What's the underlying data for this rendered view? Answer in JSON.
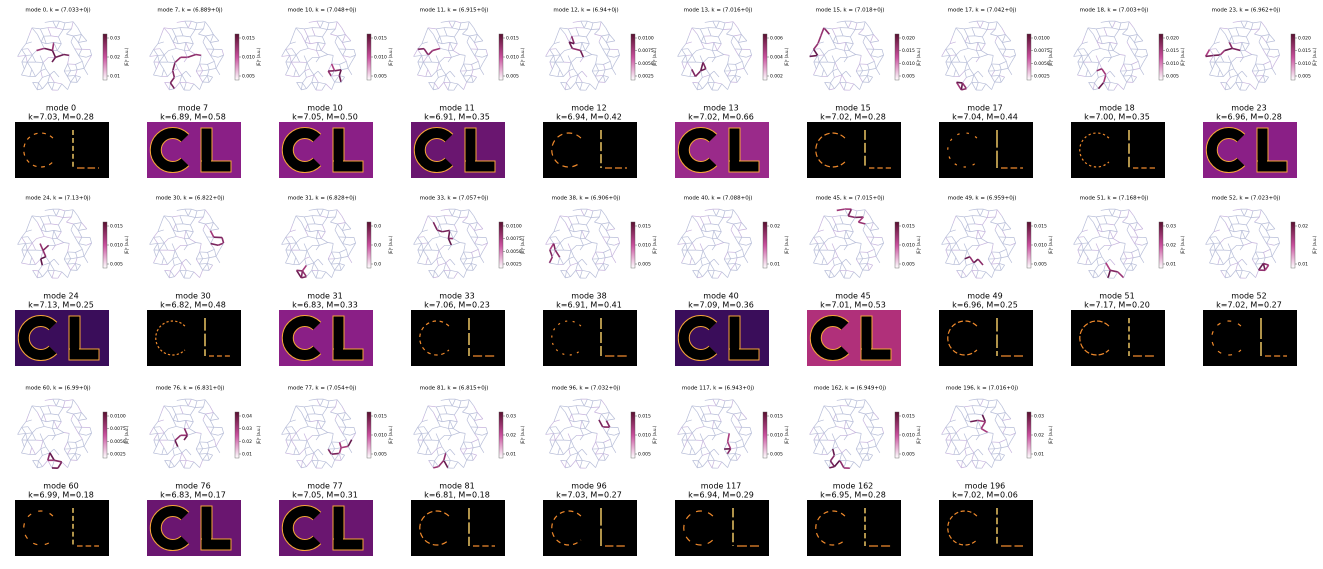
{
  "colorbar_label": "|E|² (a.u.)",
  "panels": [
    {
      "graph_title": "mode 0, k = (7.033+0j)",
      "colorbar_ticks": [
        "0.03",
        "0.02",
        "0.01"
      ],
      "heatmap_title": "mode 0",
      "heatmap_subtitle": "k=7.03, M=0.28",
      "heatmap_background": "#000000"
    },
    {
      "graph_title": "mode 7, k = (6.889+0j)",
      "colorbar_ticks": [
        "0.015",
        "0.010",
        "0.005"
      ],
      "heatmap_title": "mode 7",
      "heatmap_subtitle": "k=6.89, M=0.58",
      "heatmap_background": "#8a1f86"
    },
    {
      "graph_title": "mode 10, k = (7.048+0j)",
      "colorbar_ticks": [
        "0.015",
        "0.010",
        "0.005"
      ],
      "heatmap_title": "mode 10",
      "heatmap_subtitle": "k=7.05, M=0.50",
      "heatmap_background": "#8a1f86"
    },
    {
      "graph_title": "mode 11, k = (6.915+0j)",
      "colorbar_ticks": [
        "0.015",
        "0.010",
        "0.005"
      ],
      "heatmap_title": "mode 11",
      "heatmap_subtitle": "k=6.91, M=0.35",
      "heatmap_background": "#6a1670"
    },
    {
      "graph_title": "mode 12, k = (6.94+0j)",
      "colorbar_ticks": [
        "0.0100",
        "0.0075",
        "0.0050",
        "0.0025"
      ],
      "heatmap_title": "mode 12",
      "heatmap_subtitle": "k=6.94, M=0.42",
      "heatmap_background": "#000000"
    },
    {
      "graph_title": "mode 13, k = (7.016+0j)",
      "colorbar_ticks": [
        "0.006",
        "0.004",
        "0.002"
      ],
      "heatmap_title": "mode 13",
      "heatmap_subtitle": "k=7.02, M=0.66",
      "heatmap_background": "#9a2a8a"
    },
    {
      "graph_title": "mode 15, k = (7.018+0j)",
      "colorbar_ticks": [
        "0.020",
        "0.015",
        "0.010",
        "0.005"
      ],
      "heatmap_title": "mode 15",
      "heatmap_subtitle": "k=7.02, M=0.28",
      "heatmap_background": "#000000"
    },
    {
      "graph_title": "mode 17, k = (7.042+0j)",
      "colorbar_ticks": [
        "0.0100",
        "0.0075",
        "0.0050",
        "0.0025"
      ],
      "heatmap_title": "mode 17",
      "heatmap_subtitle": "k=7.04, M=0.44",
      "heatmap_background": "#000000"
    },
    {
      "graph_title": "mode 18, k = (7.003+0j)",
      "colorbar_ticks": [
        "0.020",
        "0.015",
        "0.010",
        "0.005"
      ],
      "heatmap_title": "mode 18",
      "heatmap_subtitle": "k=7.00, M=0.35",
      "heatmap_background": "#000000"
    },
    {
      "graph_title": "mode 23, k = (6.962+0j)",
      "colorbar_ticks": [
        "0.020",
        "0.015",
        "0.010",
        "0.005"
      ],
      "heatmap_title": "mode 23",
      "heatmap_subtitle": "k=6.96, M=0.28",
      "heatmap_background": "#8a1f86"
    },
    {
      "graph_title": "mode 24, k = (7.13+0j)",
      "colorbar_ticks": [
        "0.015",
        "0.010",
        "0.005"
      ],
      "heatmap_title": "mode 24",
      "heatmap_subtitle": "k=7.13, M=0.25",
      "heatmap_background": "#3a0d5a"
    },
    {
      "graph_title": "mode 30, k = (6.822+0j)",
      "heatmap_title": "mode 30",
      "heatmap_subtitle": "k=6.82, M=0.48",
      "heatmap_background": "#000000"
    },
    {
      "graph_title": "mode 31, k = (6.828+0j)",
      "colorbar_ticks": [
        "0.0",
        "0.0",
        "0.0"
      ],
      "heatmap_title": "mode 31",
      "heatmap_subtitle": "k=6.83, M=0.33",
      "heatmap_background": "#8a1f86"
    },
    {
      "graph_title": "mode 33, k = (7.057+0j)",
      "colorbar_ticks": [
        "0.0100",
        "0.0075",
        "0.0050",
        "0.0025"
      ],
      "heatmap_title": "mode 33",
      "heatmap_subtitle": "k=7.06, M=0.23",
      "heatmap_background": "#000000"
    },
    {
      "graph_title": "mode 38, k = (6.906+0j)",
      "colorbar_ticks": [
        "0.015",
        "0.010",
        "0.005"
      ],
      "heatmap_title": "mode 38",
      "heatmap_subtitle": "k=6.91, M=0.41",
      "heatmap_background": "#000000"
    },
    {
      "graph_title": "mode 40, k = (7.088+0j)",
      "colorbar_ticks": [
        "0.02",
        "0.01"
      ],
      "heatmap_title": "mode 40",
      "heatmap_subtitle": "k=7.09, M=0.36",
      "heatmap_background": "#3a0d5a"
    },
    {
      "graph_title": "mode 45, k = (7.015+0j)",
      "colorbar_ticks": [
        "0.015",
        "0.010",
        "0.005"
      ],
      "heatmap_title": "mode 45",
      "heatmap_subtitle": "k=7.01, M=0.53",
      "heatmap_background": "#b0307a"
    },
    {
      "graph_title": "mode 49, k = (6.959+0j)",
      "colorbar_ticks": [
        "0.015",
        "0.010",
        "0.005"
      ],
      "heatmap_title": "mode 49",
      "heatmap_subtitle": "k=6.96, M=0.25",
      "heatmap_background": "#000000"
    },
    {
      "graph_title": "mode 51, k = (7.168+0j)",
      "colorbar_ticks": [
        "0.03",
        "0.02",
        "0.01"
      ],
      "heatmap_title": "mode 51",
      "heatmap_subtitle": "k=7.17, M=0.20",
      "heatmap_background": "#000000"
    },
    {
      "graph_title": "mode 52, k = (7.023+0j)",
      "colorbar_ticks": [
        "0.02",
        "0.01"
      ],
      "heatmap_title": "mode 52",
      "heatmap_subtitle": "k=7.02, M=0.27",
      "heatmap_background": "#000000"
    },
    {
      "graph_title": "mode 60, k = (6.99+0j)",
      "colorbar_ticks": [
        "0.0100",
        "0.0075",
        "0.0050",
        "0.0025"
      ],
      "heatmap_title": "mode 60",
      "heatmap_subtitle": "k=6.99, M=0.18",
      "heatmap_background": "#000000"
    },
    {
      "graph_title": "mode 76, k = (6.831+0j)",
      "colorbar_ticks": [
        "0.04",
        "0.03",
        "0.02",
        "0.01"
      ],
      "heatmap_title": "mode 76",
      "heatmap_subtitle": "k=6.83, M=0.17",
      "heatmap_background": "#6a1670"
    },
    {
      "graph_title": "mode 77, k = (7.054+0j)",
      "colorbar_ticks": [
        "0.015",
        "0.010",
        "0.005"
      ],
      "heatmap_title": "mode 77",
      "heatmap_subtitle": "k=7.05, M=0.31",
      "heatmap_background": "#6a1670"
    },
    {
      "graph_title": "mode 81, k = (6.815+0j)",
      "colorbar_ticks": [
        "0.03",
        "0.02",
        "0.01"
      ],
      "heatmap_title": "mode 81",
      "heatmap_subtitle": "k=6.81, M=0.18",
      "heatmap_background": "#000000"
    },
    {
      "graph_title": "mode 96, k = (7.032+0j)",
      "colorbar_ticks": [
        "0.015",
        "0.010",
        "0.005"
      ],
      "heatmap_title": "mode 96",
      "heatmap_subtitle": "k=7.03, M=0.27",
      "heatmap_background": "#000000"
    },
    {
      "graph_title": "mode 117, k = (6.943+0j)",
      "colorbar_ticks": [
        "0.015",
        "0.010",
        "0.005"
      ],
      "heatmap_title": "mode 117",
      "heatmap_subtitle": "k=6.94, M=0.29",
      "heatmap_background": "#000000"
    },
    {
      "graph_title": "mode 162, k = (6.949+0j)",
      "colorbar_ticks": [
        "0.015",
        "0.010",
        "0.005"
      ],
      "heatmap_title": "mode 162",
      "heatmap_subtitle": "k=6.95, M=0.28",
      "heatmap_background": "#000000"
    },
    {
      "graph_title": "mode 196, k = (7.016+0j)",
      "colorbar_ticks": [
        "0.03",
        "0.02",
        "0.01"
      ],
      "heatmap_title": "mode 196",
      "heatmap_subtitle": "k=7.02, M=0.06",
      "heatmap_background": "#000000"
    }
  ]
}
